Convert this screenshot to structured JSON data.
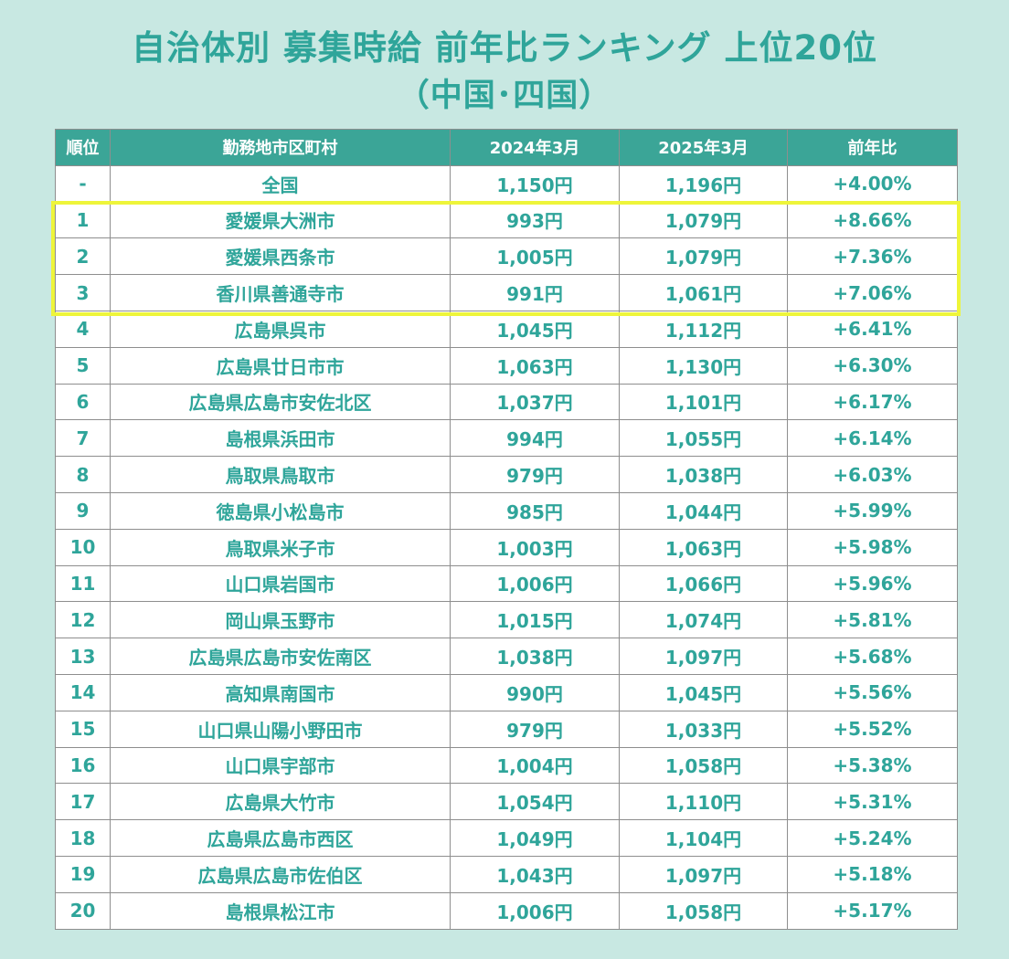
{
  "title": {
    "line1": "自治体別 募集時給 前年比ランキング 上位20位",
    "line2": "（中国･四国）"
  },
  "highlight_color": "#eef53a",
  "chart_data": {
    "type": "table",
    "columns": [
      "順位",
      "勤務地市区町村",
      "2024年3月",
      "2025年3月",
      "前年比"
    ],
    "rows": [
      {
        "rank": "-",
        "area": "全国",
        "y2024": "1,150円",
        "y2025": "1,196円",
        "yoy": "+4.00%"
      },
      {
        "rank": "1",
        "area": "愛媛県大洲市",
        "y2024": "993円",
        "y2025": "1,079円",
        "yoy": "+8.66%"
      },
      {
        "rank": "2",
        "area": "愛媛県西条市",
        "y2024": "1,005円",
        "y2025": "1,079円",
        "yoy": "+7.36%"
      },
      {
        "rank": "3",
        "area": "香川県善通寺市",
        "y2024": "991円",
        "y2025": "1,061円",
        "yoy": "+7.06%"
      },
      {
        "rank": "4",
        "area": "広島県呉市",
        "y2024": "1,045円",
        "y2025": "1,112円",
        "yoy": "+6.41%"
      },
      {
        "rank": "5",
        "area": "広島県廿日市市",
        "y2024": "1,063円",
        "y2025": "1,130円",
        "yoy": "+6.30%"
      },
      {
        "rank": "6",
        "area": "広島県広島市安佐北区",
        "y2024": "1,037円",
        "y2025": "1,101円",
        "yoy": "+6.17%"
      },
      {
        "rank": "7",
        "area": "島根県浜田市",
        "y2024": "994円",
        "y2025": "1,055円",
        "yoy": "+6.14%"
      },
      {
        "rank": "8",
        "area": "鳥取県鳥取市",
        "y2024": "979円",
        "y2025": "1,038円",
        "yoy": "+6.03%"
      },
      {
        "rank": "9",
        "area": "徳島県小松島市",
        "y2024": "985円",
        "y2025": "1,044円",
        "yoy": "+5.99%"
      },
      {
        "rank": "10",
        "area": "鳥取県米子市",
        "y2024": "1,003円",
        "y2025": "1,063円",
        "yoy": "+5.98%"
      },
      {
        "rank": "11",
        "area": "山口県岩国市",
        "y2024": "1,006円",
        "y2025": "1,066円",
        "yoy": "+5.96%"
      },
      {
        "rank": "12",
        "area": "岡山県玉野市",
        "y2024": "1,015円",
        "y2025": "1,074円",
        "yoy": "+5.81%"
      },
      {
        "rank": "13",
        "area": "広島県広島市安佐南区",
        "y2024": "1,038円",
        "y2025": "1,097円",
        "yoy": "+5.68%"
      },
      {
        "rank": "14",
        "area": "高知県南国市",
        "y2024": "990円",
        "y2025": "1,045円",
        "yoy": "+5.56%"
      },
      {
        "rank": "15",
        "area": "山口県山陽小野田市",
        "y2024": "979円",
        "y2025": "1,033円",
        "yoy": "+5.52%"
      },
      {
        "rank": "16",
        "area": "山口県宇部市",
        "y2024": "1,004円",
        "y2025": "1,058円",
        "yoy": "+5.38%"
      },
      {
        "rank": "17",
        "area": "広島県大竹市",
        "y2024": "1,054円",
        "y2025": "1,110円",
        "yoy": "+5.31%"
      },
      {
        "rank": "18",
        "area": "広島県広島市西区",
        "y2024": "1,049円",
        "y2025": "1,104円",
        "yoy": "+5.24%"
      },
      {
        "rank": "19",
        "area": "広島県広島市佐伯区",
        "y2024": "1,043円",
        "y2025": "1,097円",
        "yoy": "+5.18%"
      },
      {
        "rank": "20",
        "area": "島根県松江市",
        "y2024": "1,006円",
        "y2025": "1,058円",
        "yoy": "+5.17%"
      }
    ]
  }
}
